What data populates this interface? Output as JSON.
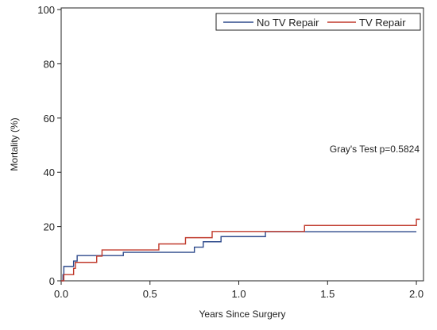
{
  "chart_data": {
    "type": "line",
    "step": true,
    "xlabel": "Years Since Surgery",
    "ylabel": "Mortality (%)",
    "xlim": [
      0,
      2.0
    ],
    "ylim": [
      0,
      100
    ],
    "x_ticks": [
      "0.0",
      "0.5",
      "1.0",
      "1.5",
      "2.0"
    ],
    "y_ticks": [
      "0",
      "20",
      "40",
      "60",
      "80",
      "100"
    ],
    "grid": false,
    "legend_position": "top-right",
    "annotation": "Gray's Test p=0.5824",
    "colors": {
      "No TV Repair": "#2e4a8c",
      "TV Repair": "#c0392b"
    },
    "series": [
      {
        "name": "No TV Repair",
        "points": [
          [
            0,
            0
          ],
          [
            0.01,
            2.3
          ],
          [
            0.015,
            5.3
          ],
          [
            0.07,
            7.3
          ],
          [
            0.09,
            9.3
          ],
          [
            0.35,
            10.5
          ],
          [
            0.75,
            12.4
          ],
          [
            0.8,
            14.4
          ],
          [
            0.9,
            16.3
          ],
          [
            1.15,
            18.1
          ],
          [
            2.0,
            18.1
          ]
        ]
      },
      {
        "name": "TV Repair",
        "points": [
          [
            0,
            0
          ],
          [
            0.015,
            2.3
          ],
          [
            0.07,
            4.6
          ],
          [
            0.08,
            6.8
          ],
          [
            0.2,
            9.1
          ],
          [
            0.23,
            11.4
          ],
          [
            0.55,
            13.6
          ],
          [
            0.7,
            15.9
          ],
          [
            0.85,
            18.2
          ],
          [
            1.37,
            20.4
          ],
          [
            2.0,
            22.7
          ],
          [
            2.02,
            22.7
          ]
        ]
      }
    ]
  }
}
